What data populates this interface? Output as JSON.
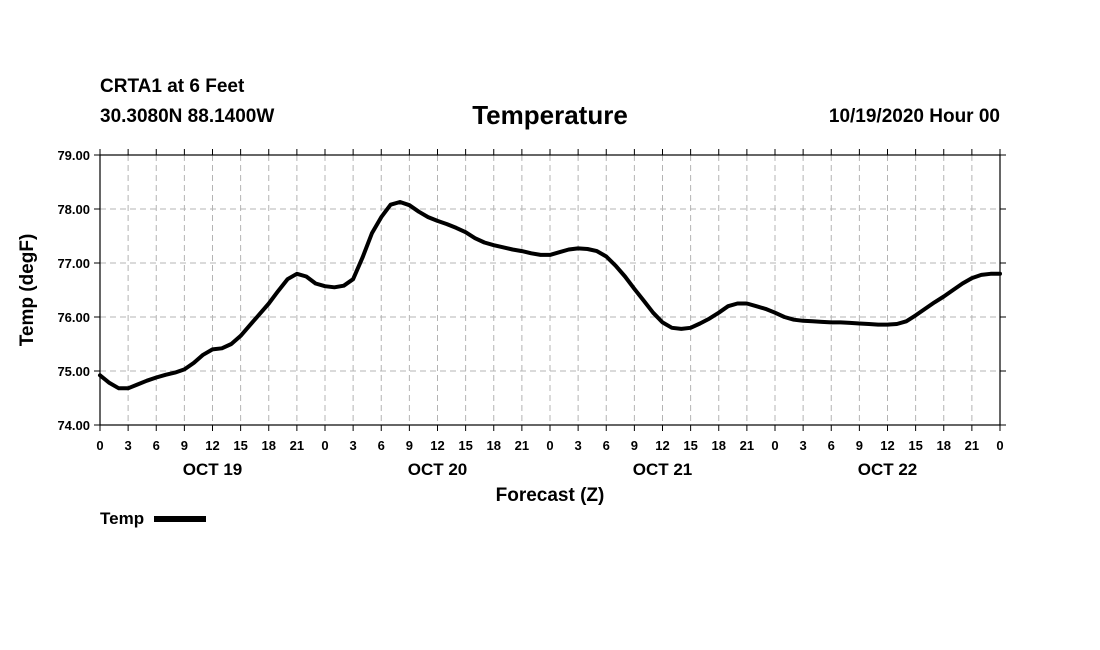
{
  "header": {
    "station": "CRTA1 at 6 Feet",
    "coords": "30.3080N 88.1400W",
    "title": "Temperature",
    "datetime": "10/19/2020 Hour 00"
  },
  "legend": {
    "label": "Temp"
  },
  "chart_data": {
    "type": "line",
    "title": "Temperature",
    "xlabel": "Forecast (Z)",
    "ylabel": "Temp (degF)",
    "xlim": [
      0,
      96
    ],
    "ylim": [
      74,
      79
    ],
    "grid": true,
    "y_ticks": [
      74,
      75,
      76,
      77,
      78,
      79
    ],
    "y_tick_labels": [
      "74.00",
      "75.00",
      "76.00",
      "77.00",
      "78.00",
      "79.00"
    ],
    "x_tick_labels": [
      "0",
      "3",
      "6",
      "9",
      "12",
      "15",
      "18",
      "21",
      "0",
      "3",
      "6",
      "9",
      "12",
      "15",
      "18",
      "21",
      "0",
      "3",
      "6",
      "9",
      "12",
      "15",
      "18",
      "21",
      "0",
      "3",
      "6",
      "9",
      "12",
      "15",
      "18",
      "21",
      "0"
    ],
    "day_labels": [
      {
        "label": "OCT 19",
        "hour": 12
      },
      {
        "label": "OCT 20",
        "hour": 36
      },
      {
        "label": "OCT 21",
        "hour": 60
      },
      {
        "label": "OCT 22",
        "hour": 84
      }
    ],
    "line_color": "#000000",
    "series": [
      {
        "name": "Temp",
        "x": [
          0,
          1,
          2,
          3,
          4,
          5,
          6,
          7,
          8,
          9,
          10,
          11,
          12,
          13,
          14,
          15,
          16,
          17,
          18,
          19,
          20,
          21,
          22,
          23,
          24,
          25,
          26,
          27,
          28,
          29,
          30,
          31,
          32,
          33,
          34,
          35,
          36,
          37,
          38,
          39,
          40,
          41,
          42,
          43,
          44,
          45,
          46,
          47,
          48,
          49,
          50,
          51,
          52,
          53,
          54,
          55,
          56,
          57,
          58,
          59,
          60,
          61,
          62,
          63,
          64,
          65,
          66,
          67,
          68,
          69,
          70,
          71,
          72,
          73,
          74,
          75,
          76,
          77,
          78,
          79,
          80,
          81,
          82,
          83,
          84,
          85,
          86,
          87,
          88,
          89,
          90,
          91,
          92,
          93,
          94,
          95,
          96
        ],
        "values": [
          74.92,
          74.78,
          74.68,
          74.68,
          74.75,
          74.82,
          74.88,
          74.93,
          74.97,
          75.03,
          75.15,
          75.3,
          75.4,
          75.42,
          75.5,
          75.65,
          75.85,
          76.05,
          76.25,
          76.48,
          76.7,
          76.8,
          76.75,
          76.62,
          76.57,
          76.55,
          76.58,
          76.7,
          77.1,
          77.55,
          77.85,
          78.08,
          78.13,
          78.07,
          77.95,
          77.85,
          77.78,
          77.72,
          77.65,
          77.57,
          77.46,
          77.38,
          77.33,
          77.29,
          77.25,
          77.22,
          77.18,
          77.15,
          77.15,
          77.2,
          77.25,
          77.27,
          77.26,
          77.22,
          77.12,
          76.95,
          76.75,
          76.52,
          76.3,
          76.08,
          75.9,
          75.8,
          75.78,
          75.8,
          75.88,
          75.97,
          76.08,
          76.2,
          76.25,
          76.25,
          76.2,
          76.15,
          76.08,
          76.0,
          75.95,
          75.93,
          75.92,
          75.91,
          75.9,
          75.9,
          75.89,
          75.88,
          75.87,
          75.86,
          75.86,
          75.87,
          75.92,
          76.03,
          76.15,
          76.27,
          76.38,
          76.5,
          76.62,
          76.72,
          76.78,
          76.8,
          76.8
        ]
      }
    ]
  }
}
